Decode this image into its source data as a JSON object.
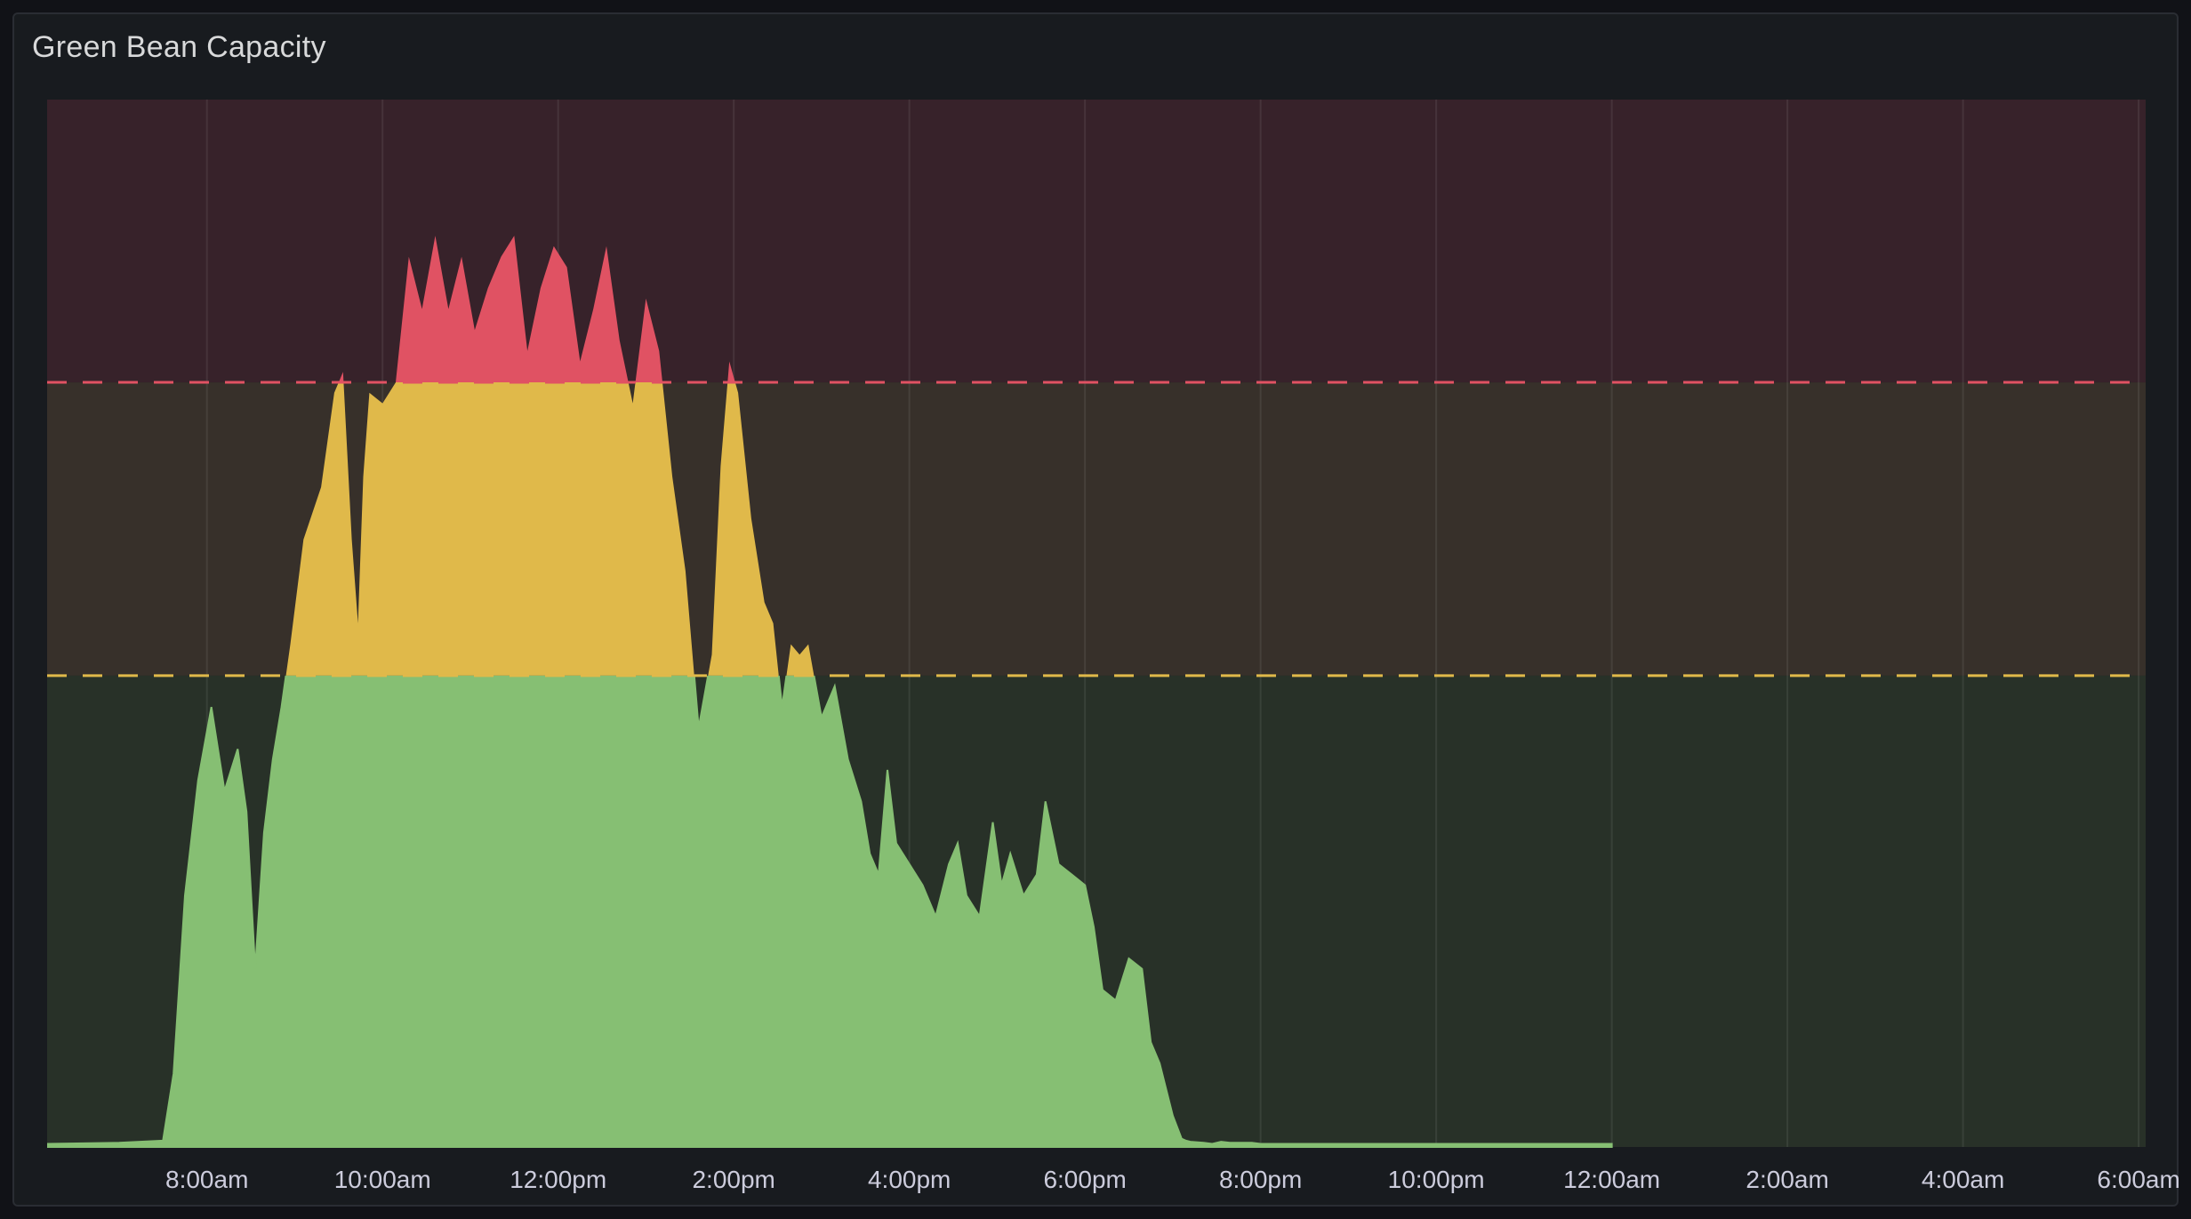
{
  "panel": {
    "title": "Green Bean Capacity"
  },
  "chart_data": {
    "type": "area",
    "title": "Green Bean Capacity",
    "xlabel": "",
    "ylabel": "",
    "y_axis_shown": false,
    "grid": "vertical",
    "legend": "none",
    "x_ticks": [
      "8:00am",
      "10:00am",
      "12:00pm",
      "2:00pm",
      "4:00pm",
      "6:00pm",
      "8:00pm",
      "10:00pm",
      "12:00am",
      "2:00am",
      "4:00am",
      "6:00am"
    ],
    "x_range_hours": [
      6.18,
      30.08
    ],
    "y_range": [
      0,
      100
    ],
    "thresholds": [
      {
        "value": 45,
        "color": "#e0b94a"
      },
      {
        "value": 73,
        "color": "#e05263"
      }
    ],
    "threshold_colors": {
      "low": "#86bf73",
      "mid": "#e0b94a",
      "high": "#e05263"
    },
    "background_band_colors": {
      "low": "#283128",
      "mid": "#37302a",
      "high": "#37222a"
    },
    "series": [
      {
        "x_hours": [
          6.18,
          7.0,
          7.5,
          7.62,
          7.75,
          7.9,
          8.05,
          8.2,
          8.35,
          8.45,
          8.55,
          8.65,
          8.75,
          8.85,
          8.95,
          9.1,
          9.3,
          9.45,
          9.55,
          9.65,
          9.72,
          9.78,
          9.85,
          10.0,
          10.15,
          10.3,
          10.45,
          10.6,
          10.75,
          10.9,
          11.05,
          11.2,
          11.35,
          11.5,
          11.65,
          11.8,
          11.95,
          12.1,
          12.25,
          12.4,
          12.55,
          12.7,
          12.85,
          13.0,
          13.15,
          13.3,
          13.45,
          13.6,
          13.75,
          13.85,
          13.95,
          14.05,
          14.2,
          14.35,
          14.45,
          14.55,
          14.65,
          14.75,
          14.85,
          15.0,
          15.15,
          15.3,
          15.45,
          15.55,
          15.65,
          15.75,
          15.85,
          16.0,
          16.15,
          16.3,
          16.45,
          16.55,
          16.65,
          16.8,
          16.95,
          17.05,
          17.15,
          17.3,
          17.45,
          17.55,
          17.7,
          17.85,
          18.0,
          18.1,
          18.2,
          18.35,
          18.5,
          18.65,
          18.75,
          18.85,
          19.0,
          19.1,
          19.15,
          19.2,
          19.35,
          19.45,
          19.55,
          19.65,
          19.75,
          19.9,
          20.0,
          20.3,
          20.6,
          21.0,
          22.0,
          23.0,
          24.0
        ],
        "values": [
          0.3,
          0.4,
          0.6,
          7,
          24,
          35,
          42,
          34,
          38,
          32,
          17,
          30,
          37,
          42,
          48,
          58,
          63,
          72,
          74,
          58,
          50,
          64,
          72,
          71,
          73,
          85,
          80,
          87,
          80,
          85,
          78,
          82,
          85,
          87,
          76,
          82,
          86,
          84,
          75,
          80,
          86,
          77,
          71,
          81,
          76,
          64,
          55,
          40,
          47,
          65,
          75,
          72,
          60,
          52,
          50,
          42,
          48,
          47,
          48,
          41,
          44,
          37,
          33,
          28,
          26,
          36,
          29,
          27,
          25,
          22,
          27,
          29,
          24,
          22,
          31,
          25,
          28,
          24,
          26,
          33,
          27,
          26,
          25,
          21,
          15,
          14,
          18,
          17,
          10,
          8,
          3,
          0.8,
          0.6,
          0.5,
          0.4,
          0.3,
          0.5,
          0.4,
          0.4,
          0.4,
          0.3,
          0.3,
          0.3,
          0.3,
          0.3,
          0.3,
          0.3
        ]
      }
    ]
  }
}
